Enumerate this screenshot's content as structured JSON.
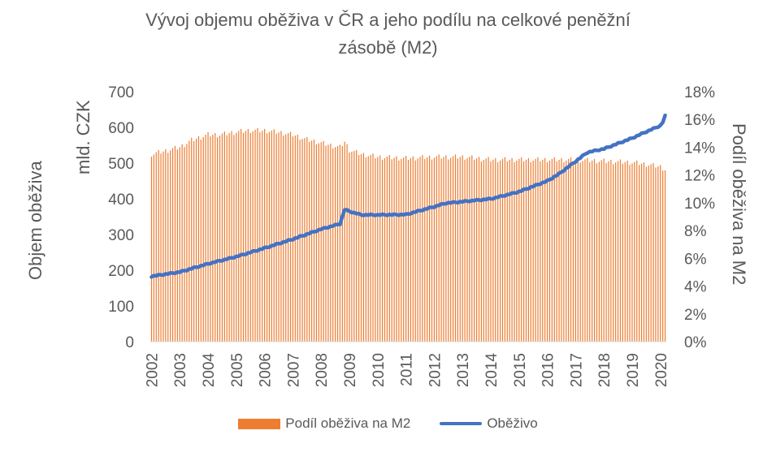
{
  "chart_data": {
    "type": "bar+line",
    "title": "Vývoj objemu oběživa v ČR a jeho podílu na celkové peněžní zásobě (M2)",
    "title_line1": "Vývoj objemu oběživa v ČR a jeho podílu na celkové peněžní",
    "title_line2": "zásobě (M2)",
    "y_left_label": "Objem oběživa",
    "y_left_unit": "mld. CZK",
    "y_right_label": "Podíl oběživa na M2",
    "y_left_lim": [
      0,
      700
    ],
    "y_left_ticks": [
      "0",
      "100",
      "200",
      "300",
      "400",
      "500",
      "600",
      "700"
    ],
    "y_right_lim": [
      0,
      18
    ],
    "y_right_ticks": [
      "0%",
      "2%",
      "4%",
      "6%",
      "8%",
      "10%",
      "12%",
      "14%",
      "16%",
      "18%"
    ],
    "x_ticks": [
      "2002",
      "2003",
      "2004",
      "2005",
      "2006",
      "2007",
      "2008",
      "2009",
      "2010",
      "2011",
      "2012",
      "2013",
      "2014",
      "2015",
      "2016",
      "2017",
      "2018",
      "2019",
      "2020"
    ],
    "frequency": "monthly",
    "start": "2002-01",
    "end": "2020-03",
    "series": [
      {
        "name": "Podíl oběživa na M2",
        "type": "bar",
        "axis": "right",
        "color": "#ED7D31",
        "key_points": [
          [
            "2002-01",
            13.5
          ],
          [
            "2002-06",
            13.7
          ],
          [
            "2003-01",
            14.0
          ],
          [
            "2003-06",
            14.5
          ],
          [
            "2004-01",
            14.9
          ],
          [
            "2004-06",
            14.9
          ],
          [
            "2005-01",
            15.1
          ],
          [
            "2005-06",
            15.2
          ],
          [
            "2006-01",
            15.2
          ],
          [
            "2006-06",
            15.1
          ],
          [
            "2007-01",
            14.9
          ],
          [
            "2007-06",
            14.6
          ],
          [
            "2008-01",
            14.3
          ],
          [
            "2008-06",
            14.1
          ],
          [
            "2008-09",
            14.0
          ],
          [
            "2008-11",
            14.4
          ],
          [
            "2009-01",
            13.8
          ],
          [
            "2009-06",
            13.5
          ],
          [
            "2010-01",
            13.3
          ],
          [
            "2011-01",
            13.2
          ],
          [
            "2012-01",
            13.3
          ],
          [
            "2013-01",
            13.3
          ],
          [
            "2014-01",
            13.1
          ],
          [
            "2015-01",
            13.1
          ],
          [
            "2016-01",
            13.1
          ],
          [
            "2017-01",
            13.1
          ],
          [
            "2018-01",
            13.0
          ],
          [
            "2019-01",
            12.9
          ],
          [
            "2019-06",
            12.8
          ],
          [
            "2020-01",
            12.6
          ],
          [
            "2020-03",
            12.4
          ]
        ]
      },
      {
        "name": "Oběživo",
        "type": "line",
        "axis": "left",
        "color": "#4472C4",
        "key_points": [
          [
            "2002-01",
            183
          ],
          [
            "2003-01",
            195
          ],
          [
            "2004-01",
            218
          ],
          [
            "2005-01",
            238
          ],
          [
            "2006-01",
            262
          ],
          [
            "2007-01",
            287
          ],
          [
            "2008-01",
            315
          ],
          [
            "2008-09",
            330
          ],
          [
            "2008-11",
            370
          ],
          [
            "2009-01",
            365
          ],
          [
            "2009-06",
            355
          ],
          [
            "2010-01",
            355
          ],
          [
            "2011-01",
            356
          ],
          [
            "2012-01",
            378
          ],
          [
            "2012-06",
            388
          ],
          [
            "2013-01",
            392
          ],
          [
            "2014-01",
            400
          ],
          [
            "2014-06",
            408
          ],
          [
            "2015-01",
            420
          ],
          [
            "2016-01",
            450
          ],
          [
            "2016-06",
            470
          ],
          [
            "2017-01",
            505
          ],
          [
            "2017-06",
            530
          ],
          [
            "2018-01",
            540
          ],
          [
            "2019-01",
            570
          ],
          [
            "2019-06",
            585
          ],
          [
            "2020-01",
            605
          ],
          [
            "2020-02",
            615
          ],
          [
            "2020-03",
            632
          ]
        ]
      }
    ],
    "legend": [
      "Podíl oběživa na M2",
      "Oběživo"
    ],
    "legend_position": "bottom",
    "grid": false
  }
}
